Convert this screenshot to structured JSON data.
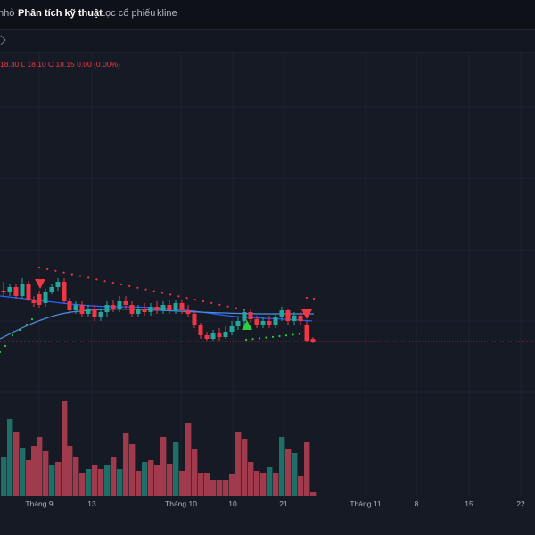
{
  "tabs": [
    {
      "label": "nhỏ",
      "active": false
    },
    {
      "label": "Phân tích kỹ thuật",
      "active": true
    },
    {
      "label": "Lọc cổ phiếu",
      "active": false
    },
    {
      "label": "kline",
      "active": false
    }
  ],
  "ohlc_text": "18.30  L 18.10  C 18.15  0.00 (0.00%)",
  "time_axis": {
    "labels": [
      "Tháng 9",
      "13",
      "Tháng 10",
      "10",
      "21",
      "Tháng 11",
      "8",
      "15",
      "22"
    ]
  },
  "colors": {
    "up": "#26a69a",
    "down": "#f23645",
    "up_volume": "#1e6f68",
    "down_volume": "#a03a4d",
    "ma_fast": "#2962ff",
    "ma_slow": "#4a90e2",
    "sar_down": "#f23645",
    "sar_up": "#2ecc40",
    "background": "#161a25",
    "grid": "#1f2330"
  },
  "chart_data": {
    "type": "candlestick",
    "price_scale": "not visible",
    "last_close": 18.15,
    "signals": [
      {
        "type": "sell",
        "shape": "down-triangle"
      },
      {
        "type": "buy",
        "shape": "up-triangle"
      },
      {
        "type": "sell",
        "shape": "down-triangle"
      }
    ],
    "indicators": [
      "moving-average",
      "moving-average",
      "parabolic-sar"
    ],
    "panes": [
      "price",
      "volume"
    ]
  }
}
